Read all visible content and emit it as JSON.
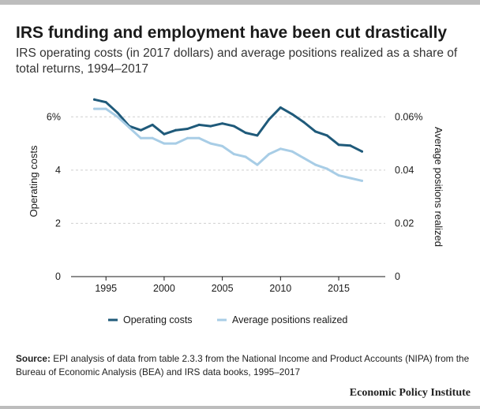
{
  "title": "IRS funding and employment have been cut drastically",
  "subtitle": "IRS operating costs (in 2017 dollars) and average positions realized as a share of total returns, 1994–2017",
  "source": {
    "label": "Source:",
    "text": " EPI analysis of data from table 2.3.3 from the National Income and Product Accounts (NIPA) from the Bureau of Economic Analysis (BEA) and IRS data books, 1995–2017"
  },
  "brand": "Economic Policy Institute",
  "chart_data": {
    "type": "line",
    "title": "IRS funding and employment have been cut drastically",
    "subtitle": "IRS operating costs (in 2017 dollars) and average positions realized as a share of total returns, 1994–2017",
    "x": [
      1994,
      1995,
      1996,
      1997,
      1998,
      1999,
      2000,
      2001,
      2002,
      2003,
      2004,
      2005,
      2006,
      2007,
      2008,
      2009,
      2010,
      2011,
      2012,
      2013,
      2014,
      2015,
      2016,
      2017
    ],
    "xlim": [
      1992,
      2019
    ],
    "x_ticks": [
      1995,
      2000,
      2005,
      2010,
      2015
    ],
    "x_tick_labels": [
      "1995",
      "2000",
      "2005",
      "2010",
      "2015"
    ],
    "y_left": {
      "label": "Operating costs",
      "ylim": [
        0,
        6.6
      ],
      "ticks": [
        0,
        2,
        4,
        6
      ],
      "tick_labels": [
        "0",
        "2",
        "4",
        "6%"
      ]
    },
    "y_right": {
      "label": "Average positions realized",
      "ylim": [
        0,
        0.066
      ],
      "ticks": [
        0,
        0.02,
        0.04,
        0.06
      ],
      "tick_labels": [
        "0",
        "0.02",
        "0.04",
        "0.06%"
      ]
    },
    "series": [
      {
        "name": "Operating costs",
        "axis": "left",
        "color": "#1f5a7a",
        "values": [
          6.65,
          6.55,
          6.15,
          5.65,
          5.5,
          5.7,
          5.35,
          5.5,
          5.55,
          5.7,
          5.65,
          5.75,
          5.65,
          5.4,
          5.3,
          5.9,
          6.35,
          6.1,
          5.8,
          5.45,
          5.3,
          4.95,
          4.92,
          4.7
        ]
      },
      {
        "name": "Average positions realized",
        "axis": "right",
        "color": "#a8cde6",
        "values": [
          0.063,
          0.063,
          0.06,
          0.056,
          0.052,
          0.052,
          0.05,
          0.05,
          0.052,
          0.052,
          0.05,
          0.049,
          0.046,
          0.045,
          0.042,
          0.046,
          0.048,
          0.047,
          0.0445,
          0.042,
          0.0405,
          0.038,
          0.037,
          0.036
        ]
      }
    ],
    "grid": "horizontal dashed",
    "legend": "bottom"
  }
}
